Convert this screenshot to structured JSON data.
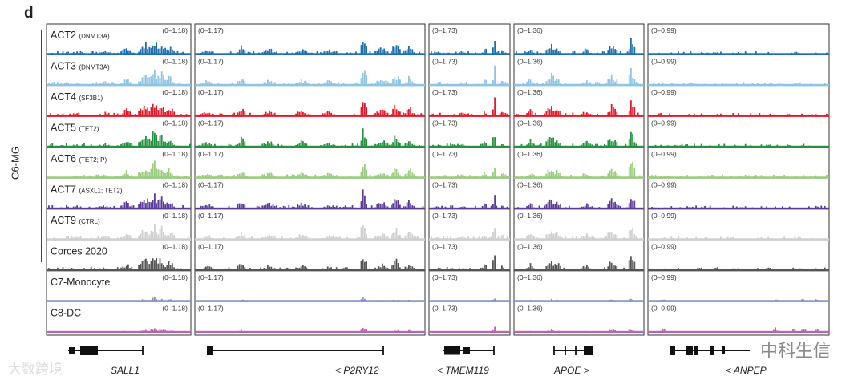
{
  "panel_letter": "d",
  "group_label": "C6-MG",
  "tracks": [
    {
      "name": "ACT2",
      "sub": "(DNMT3A)",
      "color": "#1f6fb0"
    },
    {
      "name": "ACT3",
      "sub": "(DNMT3A)",
      "color": "#8ec5e4"
    },
    {
      "name": "ACT4",
      "sub": "(SF3B1)",
      "color": "#e31a2a"
    },
    {
      "name": "ACT5",
      "sub": "(TET2)",
      "color": "#23913e"
    },
    {
      "name": "ACT6",
      "sub": "(TET2; P)",
      "color": "#9acb7e"
    },
    {
      "name": "ACT7",
      "sub": "(ASXL1; TET2)",
      "color": "#5a3b97"
    },
    {
      "name": "ACT9",
      "sub": "(CTRL)",
      "color": "#cfcfcf"
    },
    {
      "name": "Corces 2020",
      "sub": "",
      "color": "#555555"
    },
    {
      "name": "C7-Monocyte",
      "sub": "",
      "color": "#7b94c9"
    },
    {
      "name": "C8-DC",
      "sub": "",
      "color": "#bb63ae"
    }
  ],
  "loci": [
    {
      "gene": "SALL1",
      "direction": "",
      "range": "(0–1.18)",
      "pattern": "sall1"
    },
    {
      "gene": "P2RY12",
      "direction": "<",
      "range": "(0–1.17)",
      "pattern": "p2ry12"
    },
    {
      "gene": "TMEM119",
      "direction": "<",
      "range": "(0–1.73)",
      "pattern": "tmem119"
    },
    {
      "gene": "APOE",
      "direction": ">",
      "range": "(0–1.36)",
      "pattern": "apoe"
    },
    {
      "gene": "ANPEP",
      "direction": "<",
      "range": "(0–0.99)",
      "pattern": "anpep"
    }
  ],
  "gene_labels": [
    "SALL1",
    "< P2RY12",
    "< TMEM119",
    "APOE >",
    "< ANPEP"
  ],
  "watermarks": {
    "left": "大数跨境",
    "right": "中科生信"
  }
}
